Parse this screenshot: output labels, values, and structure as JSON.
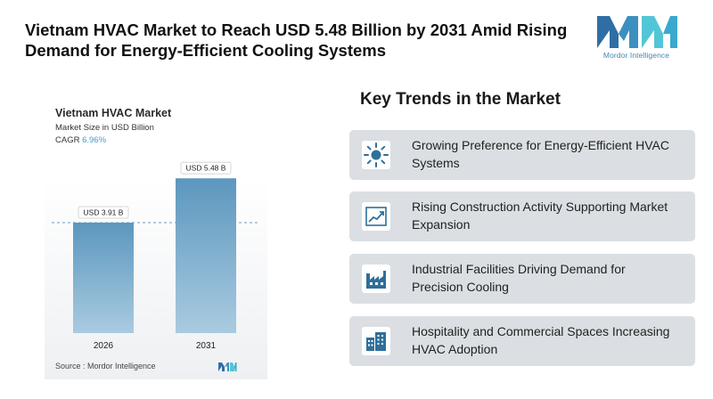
{
  "header": {
    "title": "Vietnam HVAC Market to Reach USD 5.48 Billion by 2031 Amid Rising Demand for Energy-Efficient Cooling Systems",
    "logo_text": "Mordor Intelligence"
  },
  "chart": {
    "title": "Vietnam HVAC Market",
    "subtitle": "Market Size in USD Billion",
    "cagr_label": "CAGR",
    "cagr_value": "6.96%",
    "source": "Source :  Mordor Intelligence"
  },
  "chart_data": {
    "type": "bar",
    "title": "Vietnam HVAC Market",
    "ylabel": "Market Size in USD Billion",
    "categories": [
      "2026",
      "2031"
    ],
    "values": [
      3.91,
      5.48
    ],
    "data_labels": [
      "USD 3.91 B",
      "USD 5.48 B"
    ],
    "ylim": [
      0,
      6
    ],
    "grid": false,
    "reference_line": "dashed at first bar value",
    "colors": {
      "bar_top": "#5c97be",
      "bar_bottom": "#a5c7dc",
      "dashed_line": "#6a9fc4"
    }
  },
  "trends": {
    "title": "Key Trends in the Market",
    "items": [
      {
        "icon": "sun-icon",
        "label": "Growing Preference for Energy-Efficient HVAC Systems"
      },
      {
        "icon": "line-chart-icon",
        "label": "Rising Construction Activity Supporting Market Expansion"
      },
      {
        "icon": "factory-icon",
        "label": "Industrial Facilities Driving Demand for Precision Cooling"
      },
      {
        "icon": "buildings-icon",
        "label": "Hospitality and Commercial Spaces Increasing HVAC Adoption"
      }
    ]
  },
  "colors": {
    "accent": "#2f6f99",
    "logo_blue": "#3f88b5",
    "logo_teal": "#52c6d6",
    "card_bg": "#dbdfe3"
  }
}
